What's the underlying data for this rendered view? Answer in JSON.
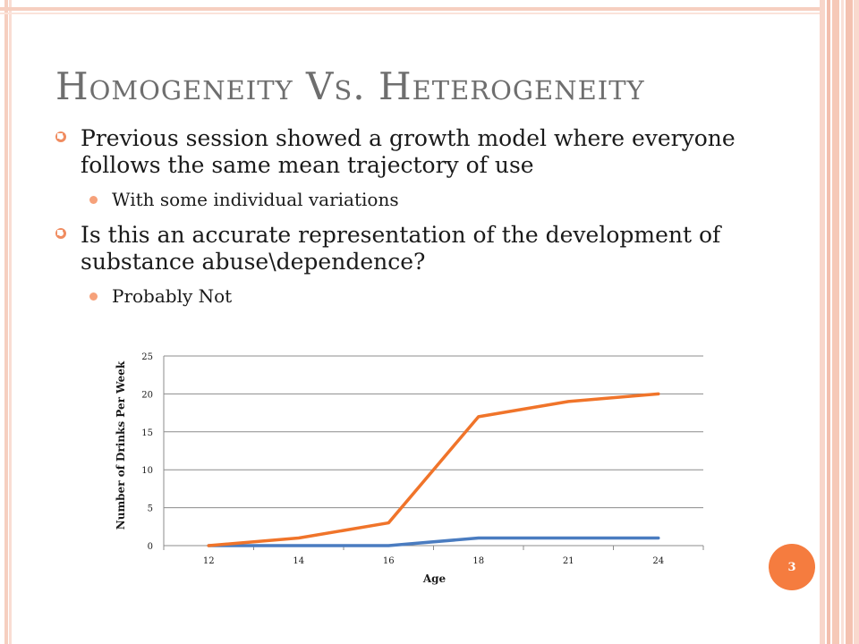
{
  "slide": {
    "title": "Homogeneity Vs. Heterogeneity",
    "page_number": "3"
  },
  "bullets": [
    {
      "text": "Previous session showed a growth model where everyone follows the same mean trajectory of use",
      "sub": "With some individual variations"
    },
    {
      "text": "Is this an accurate representation of the development of substance abuse\\dependence?",
      "sub": "Probably Not"
    }
  ],
  "colors": {
    "accent": "#f57c3f",
    "bullet_ring": "#f08c60",
    "title": "#6e6e6e",
    "series_orange": "#f0742a",
    "series_blue": "#4a7cc0"
  },
  "chart_data": {
    "type": "line",
    "title": "",
    "xlabel": "Age",
    "ylabel": "Number of Drinks Per Week",
    "categories": [
      "12",
      "14",
      "16",
      "18",
      "21",
      "24"
    ],
    "series": [
      {
        "values": [
          0,
          1,
          3,
          17,
          19,
          20
        ],
        "color": "#f0742a"
      },
      {
        "values": [
          0,
          0,
          0,
          1,
          1,
          1
        ],
        "color": "#4a7cc0"
      }
    ],
    "ylim": [
      0,
      25
    ],
    "yticks": [
      "0",
      "5",
      "10",
      "15",
      "20",
      "25"
    ],
    "grid": true,
    "legend": "none"
  }
}
